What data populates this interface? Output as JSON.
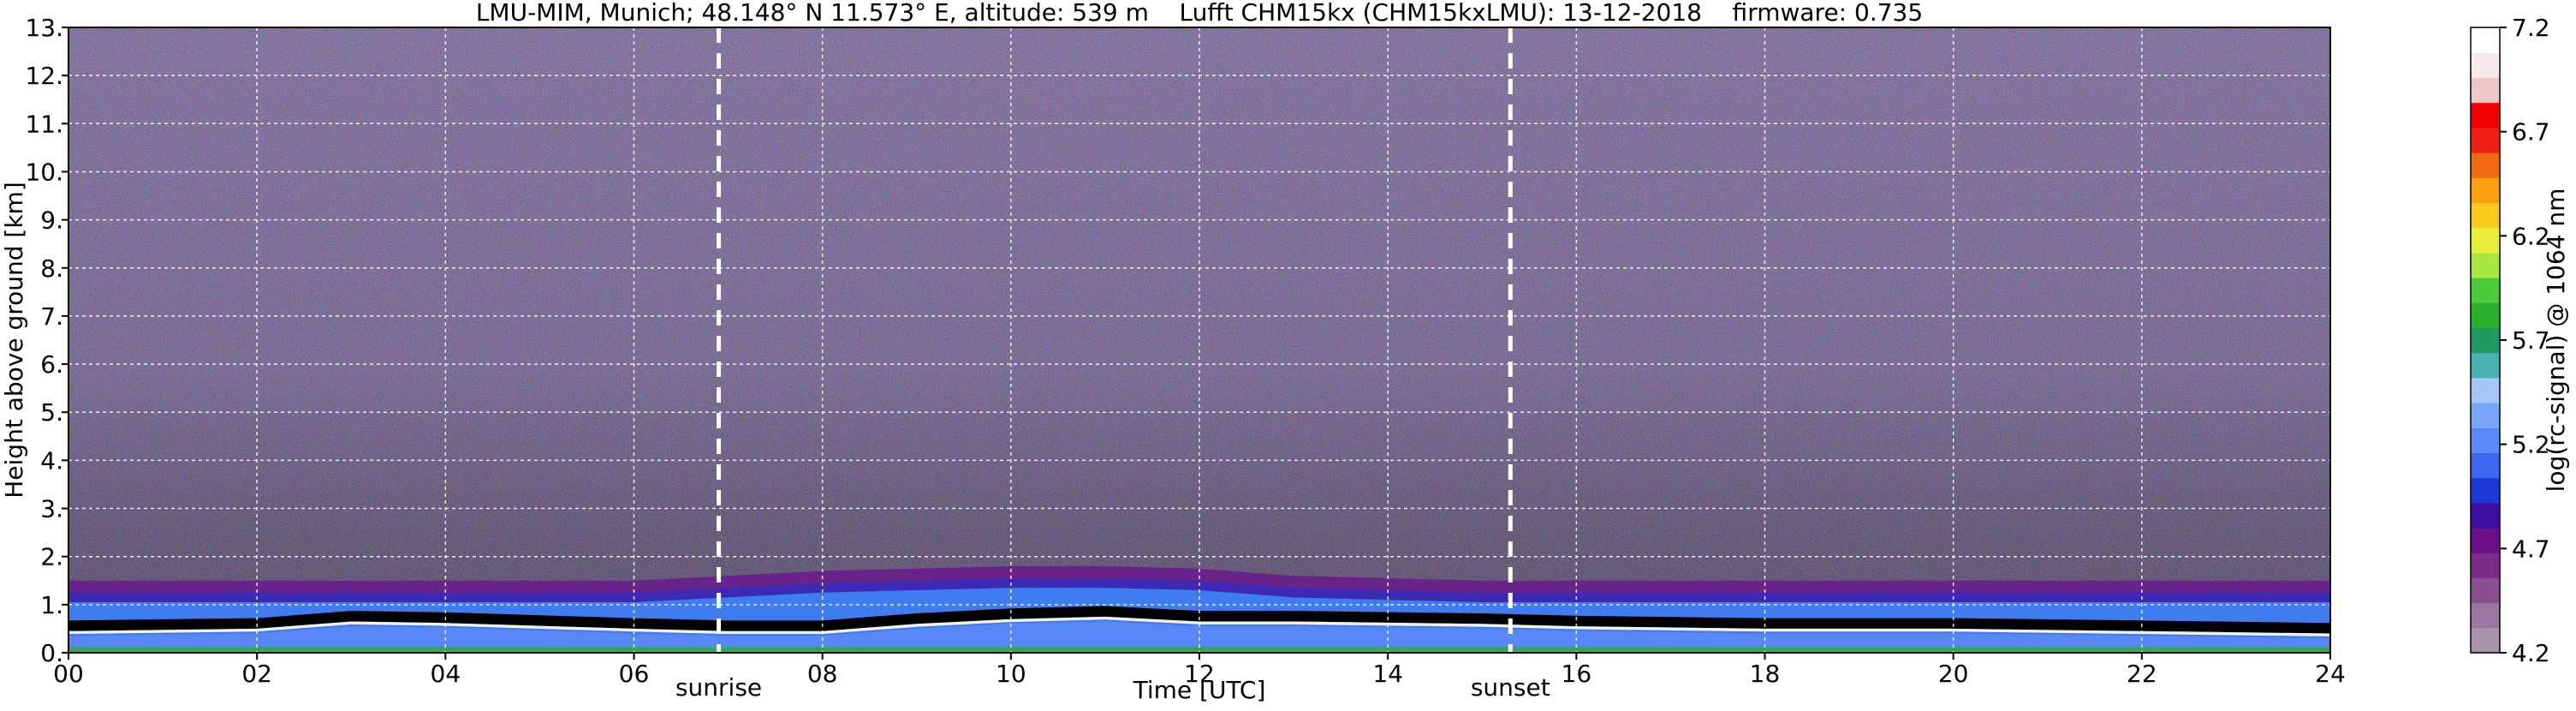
{
  "chart_data": {
    "type": "heatmap",
    "title": "LMU-MIM, Munich; 48.148° N 11.573° E, altitude: 539 m    Lufft CHM15kx (CHM15kxLMU): 13-12-2018    firmware: 0.735",
    "xlabel": "Time [UTC]",
    "ylabel": "Height above ground [km]",
    "xlim": [
      0,
      24
    ],
    "ylim": [
      0,
      13
    ],
    "x_ticks": [
      0,
      2,
      4,
      6,
      8,
      10,
      12,
      14,
      16,
      18,
      20,
      22,
      24
    ],
    "x_tick_labels": [
      "00",
      "02",
      "04",
      "06",
      "08",
      "10",
      "12",
      "14",
      "16",
      "18",
      "20",
      "22",
      "24"
    ],
    "y_ticks": [
      0,
      1,
      2,
      3,
      4,
      5,
      6,
      7,
      8,
      9,
      10,
      11,
      12,
      13
    ],
    "y_tick_labels": [
      "0.",
      "1.",
      "2.",
      "3.",
      "4.",
      "5.",
      "6.",
      "7.",
      "8.",
      "9.",
      "10.",
      "11.",
      "12.",
      "13."
    ],
    "grid": true,
    "vlines": [
      {
        "x": 6.9,
        "label": "sunrise",
        "color": "#ffffff",
        "style": "dashed"
      },
      {
        "x": 15.3,
        "label": "sunset",
        "color": "#ffffff",
        "style": "dashed"
      }
    ],
    "colorbar": {
      "label": "log(rc-signal) @ 1064 nm",
      "range": [
        4.2,
        7.2
      ],
      "ticks": [
        4.2,
        4.7,
        5.2,
        5.7,
        6.2,
        6.7,
        7.2
      ],
      "tick_labels": [
        "4.2",
        "4.7",
        "5.2",
        "5.7",
        "6.2",
        "6.7",
        "7.2"
      ],
      "colors": [
        "#a995a9",
        "#9b76a0",
        "#8a4f93",
        "#7b2b88",
        "#6a0f87",
        "#3c0ea0",
        "#1e3ad8",
        "#3d67f0",
        "#5b8af6",
        "#7aa6f8",
        "#a6c6f8",
        "#4bb0b0",
        "#1f9a62",
        "#2ab02e",
        "#4ccc3a",
        "#a8e840",
        "#e8ee3c",
        "#f8c81c",
        "#f8a010",
        "#f26a12",
        "#ee2012",
        "#f00000",
        "#eec8c8",
        "#f6eaea",
        "#ffffff"
      ]
    },
    "layers": [
      {
        "t": [
          0,
          2,
          3,
          4,
          6,
          7,
          8,
          9,
          10,
          11,
          12,
          13,
          15,
          16,
          18,
          20,
          22,
          24
        ],
        "black_layer_top_km": [
          0.55,
          0.6,
          0.75,
          0.72,
          0.6,
          0.55,
          0.55,
          0.7,
          0.8,
          0.85,
          0.75,
          0.75,
          0.7,
          0.65,
          0.6,
          0.6,
          0.55,
          0.5
        ],
        "aerosol_top_km": [
          1.5,
          1.5,
          1.5,
          1.5,
          1.5,
          1.6,
          1.7,
          1.75,
          1.8,
          1.8,
          1.75,
          1.6,
          1.5,
          1.5,
          1.5,
          1.5,
          1.5,
          1.5
        ]
      }
    ]
  }
}
